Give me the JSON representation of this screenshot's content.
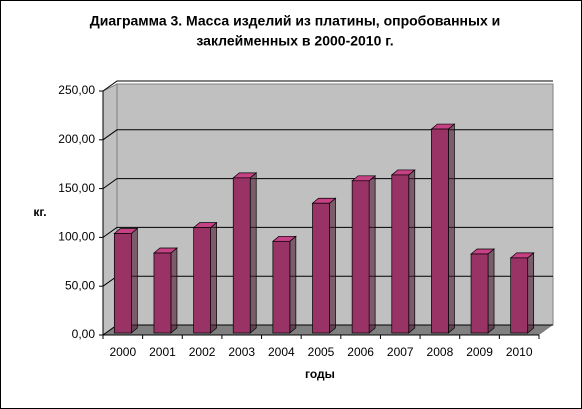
{
  "chart_data": {
    "type": "bar3d",
    "title": [
      "Диаграмма 3. Масса изделий из платины, опробованных и",
      "заклейменных в 2000-2010  г."
    ],
    "ylabel": "кг.",
    "xlabel": "годы",
    "categories": [
      "2000",
      "2001",
      "2002",
      "2003",
      "2004",
      "2005",
      "2006",
      "2007",
      "2008",
      "2009",
      "2010"
    ],
    "values": [
      104,
      84,
      110,
      161,
      96,
      135,
      158,
      164,
      211,
      83,
      79
    ],
    "color": "#993366",
    "ylim": [
      0,
      250
    ],
    "yticks": [
      {
        "value": 0,
        "label": "0,00"
      },
      {
        "value": 50,
        "label": "50,00"
      },
      {
        "value": 100,
        "label": "100,00"
      },
      {
        "value": 150,
        "label": "150,00"
      },
      {
        "value": 200,
        "label": "200,00"
      },
      {
        "value": 250,
        "label": "250,00"
      }
    ],
    "grid": true
  }
}
